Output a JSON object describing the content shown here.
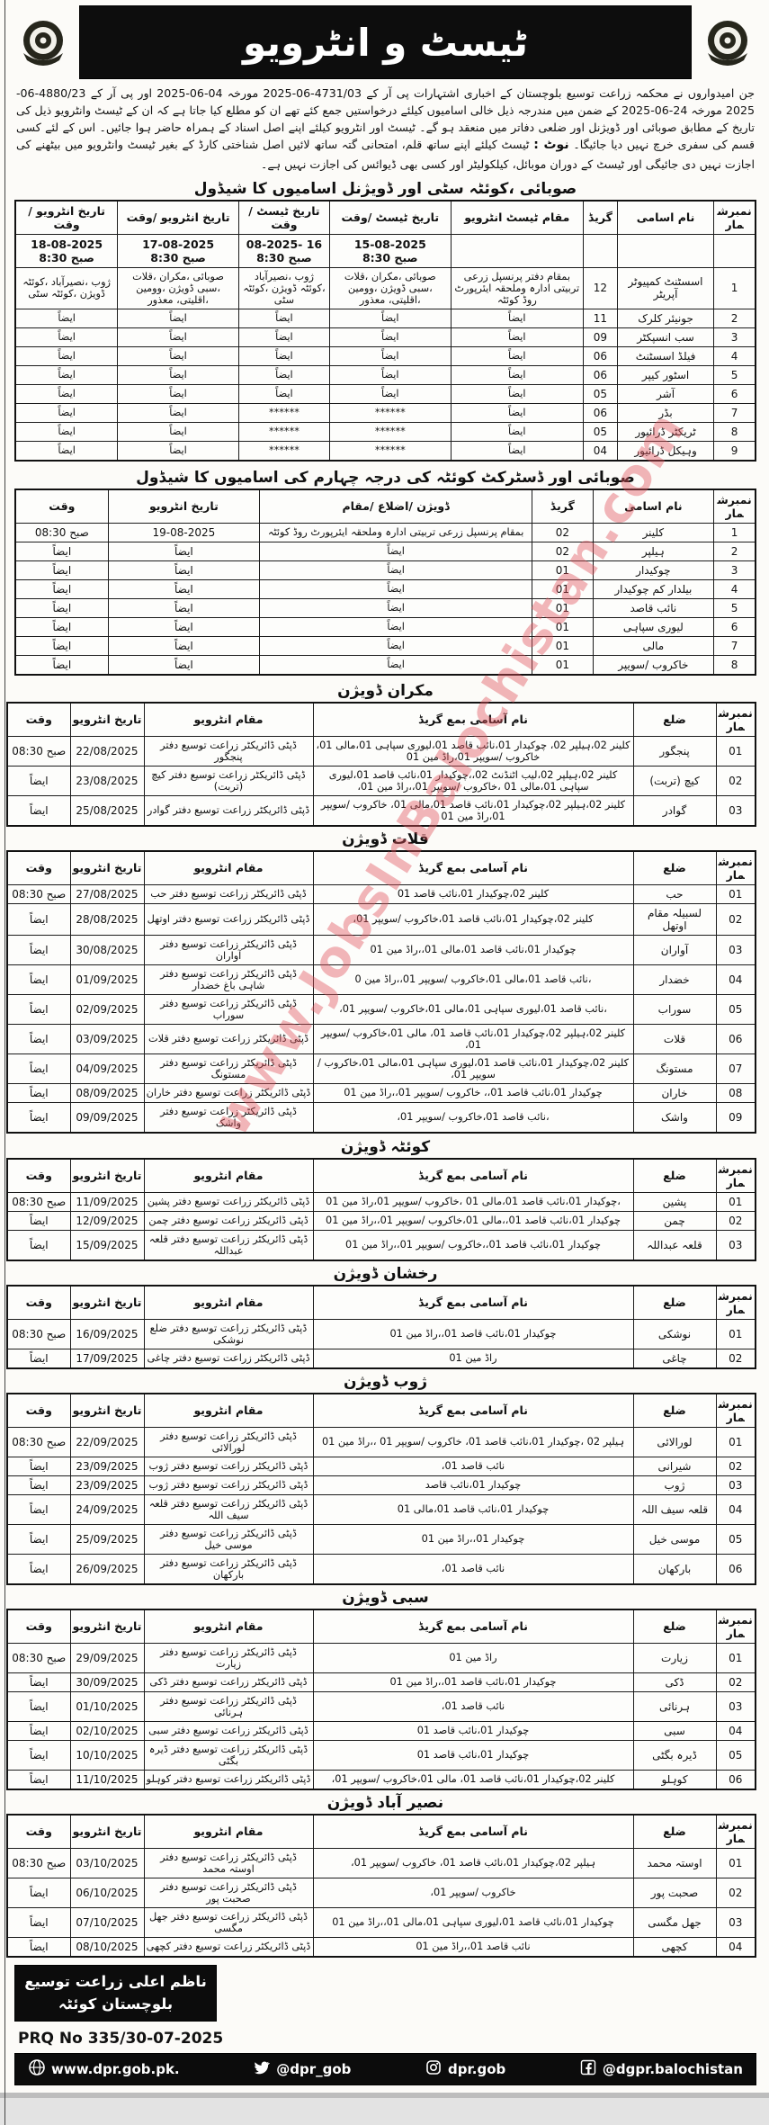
{
  "header": {
    "title": "ٹیسٹ و انٹرویو",
    "left_logo": "govt-crest",
    "right_logo": "govt-crest"
  },
  "watermark": "www.JobsInBalochistan.com",
  "intro": {
    "part1": "جن امیدواروں نے محکمہ زراعت توسیع بلوچستان کے اخباری اشتہارات پی آر کے 4731/03-06-2025 مورخہ 04-06-2025 اور پی آر کے 4880/23-06-2025 مورخہ 24-06-2025 کے ضمن میں مندرجہ ذیل خالی اسامیوں کیلئے درخواستیں جمع کئے تھے ان کو مطلع کیا جاتا ہے کہ ان کے ٹیسٹ وانٹرویو ذیل کی تاریخ کے مطابق صوبائی اور ڈویژنل اور ضلعی دفاتر میں منعقد ہو گے۔ ٹیسٹ اور انٹرویو کیلئے اپنے اصل اسناد کے ہمراہ حاضر ہوا جائیں۔ اس کے لئے کسی قسم کی سفری خرچ نہیں دیا جائیگا۔ ",
    "note_label": "نوٹ :",
    "part2": " ٹیسٹ کیلئے اپنے ساتھ قلم، امتحانی گتہ ساتھ لائیں اصل شناختی کارڈ کے بغیر ٹیسٹ وانٹرویو میں بیٹھنے کی اجازت نہیں دی جائیگی اور ٹیسٹ کے دوران موبائل، کیلکولیٹر اور کسی بھی ڈیوائس کی اجازت نہیں ہے۔"
  },
  "schedule1": {
    "title": "صوبائی ،کوئٹہ سٹی اور ڈویژنل اسامیوں کا شیڈول",
    "columns": [
      "نمبرشمار",
      "نام اسامی",
      "گریڈ",
      "مقام ٹیسٹ انٹرویو",
      "تاریخ ٹیسٹ /وقت",
      "تاریخ ٹیسٹ /وقت",
      "تاریخ انٹرویو /وقت",
      "تاریخ انٹرویو /وقت"
    ],
    "dates": [
      {
        "date": "15-08-2025",
        "time": "صبح 8:30"
      },
      {
        "date": "16 -08-2025",
        "time": "صبح 8:30"
      },
      {
        "date": "17-08-2025",
        "time": "صبح 8:30"
      },
      {
        "date": "18-08-2025",
        "time": "صبح 8:30"
      }
    ],
    "ditto": "ایضاً",
    "stars": "******",
    "rows": [
      {
        "no": "1",
        "name": "اسسٹنٹ کمپیوٹر آپریٹر",
        "grade": "12",
        "venue": "بمقام دفتر پرنسپل زرعی تربیتی ادارہ وملحقہ ایئرپورٹ روڈ کوئٹہ",
        "c1": "صوبائی ،مکران ،قلات ،سبی ڈویژن ،وومین ،اقلیتی، معذور",
        "c2": "ژوب ،نصیرآباد ،کوئٹہ ڈویژن ،کوئٹہ سٹی",
        "c3": "صوبائی ،مکران ،قلات ،سبی ڈویژن ،وومین ،اقلیتی، معذور",
        "c4": "ژوب ،نصیرآباد ،کوئٹہ ڈویژن ،کوئٹہ سٹی"
      },
      {
        "no": "2",
        "name": "جونیئر کلرک",
        "grade": "11",
        "venue": "ایضاً",
        "c1": "ایضاً",
        "c2": "ایضاً",
        "c3": "ایضاً",
        "c4": "ایضاً"
      },
      {
        "no": "3",
        "name": "سب انسپکٹر",
        "grade": "09",
        "venue": "ایضاً",
        "c1": "ایضاً",
        "c2": "ایضاً",
        "c3": "ایضاً",
        "c4": "ایضاً"
      },
      {
        "no": "4",
        "name": "فیلڈ اسسٹنٹ",
        "grade": "06",
        "venue": "ایضاً",
        "c1": "ایضاً",
        "c2": "ایضاً",
        "c3": "ایضاً",
        "c4": "ایضاً"
      },
      {
        "no": "5",
        "name": "اسٹور کیپر",
        "grade": "06",
        "venue": "ایضاً",
        "c1": "ایضاً",
        "c2": "ایضاً",
        "c3": "ایضاً",
        "c4": "ایضاً"
      },
      {
        "no": "6",
        "name": "آشر",
        "grade": "05",
        "venue": "ایضاً",
        "c1": "ایضاً",
        "c2": "ایضاً",
        "c3": "ایضاً",
        "c4": "ایضاً"
      },
      {
        "no": "7",
        "name": "بڈر",
        "grade": "06",
        "venue": "ایضاً",
        "c1": "******",
        "c2": "******",
        "c3": "ایضاً",
        "c4": "ایضاً"
      },
      {
        "no": "8",
        "name": "ٹریکٹر ڈرائیور",
        "grade": "05",
        "venue": "ایضاً",
        "c1": "******",
        "c2": "******",
        "c3": "ایضاً",
        "c4": "ایضاً"
      },
      {
        "no": "9",
        "name": "وہیکل ڈرائیور",
        "grade": "04",
        "venue": "ایضاً",
        "c1": "******",
        "c2": "******",
        "c3": "ایضاً",
        "c4": "ایضاً"
      }
    ]
  },
  "schedule2": {
    "title": "صوبائی اور ڈسٹرکٹ کوئٹہ کی درجہ چہارم کی اسامیوں کا شیڈول",
    "columns": [
      "نمبرشمار",
      "نام اسامی",
      "گریڈ",
      "ڈویژن /اضلاع /مقام",
      "تاریخ انٹرویو",
      "وقت"
    ],
    "rows": [
      {
        "no": "1",
        "name": "کلینر",
        "grade": "02",
        "place": "بمقام پرنسپل زرعی تربیتی ادارہ وملحقہ ایئرپورٹ روڈ کوئٹہ",
        "date": "19-08-2025",
        "time": "صبح 08:30"
      },
      {
        "no": "2",
        "name": "ہیلپر",
        "grade": "02",
        "place": "ایضاً",
        "date": "ایضاً",
        "time": "ایضاً"
      },
      {
        "no": "3",
        "name": "چوکیدار",
        "grade": "01",
        "place": "ایضاً",
        "date": "ایضاً",
        "time": "ایضاً"
      },
      {
        "no": "4",
        "name": "بیلدار کم چوکیدار",
        "grade": "01",
        "place": "ایضاً",
        "date": "ایضاً",
        "time": "ایضاً"
      },
      {
        "no": "5",
        "name": "نائب قاصد",
        "grade": "01",
        "place": "ایضاً",
        "date": "ایضاً",
        "time": "ایضاً"
      },
      {
        "no": "6",
        "name": "لیوری سپاہی",
        "grade": "01",
        "place": "ایضاً",
        "date": "ایضاً",
        "time": "ایضاً"
      },
      {
        "no": "7",
        "name": "مالی",
        "grade": "01",
        "place": "ایضاً",
        "date": "ایضاً",
        "time": "ایضاً"
      },
      {
        "no": "8",
        "name": "خاکروب /سویپر",
        "grade": "01",
        "place": "ایضاً",
        "date": "ایضاً",
        "time": "ایضاً"
      }
    ]
  },
  "division_columns": [
    "نمبرشمار",
    "ضلع",
    "نام آسامی بمع گریڈ",
    "مقام انٹرویو",
    "تاریخ انٹرویو",
    "وقت"
  ],
  "divisions": [
    {
      "title": "مکران ڈویژن",
      "rows": [
        {
          "no": "01",
          "district": "پنجگور",
          "posts": "کلینر 02،ہیلپر 02، چوکیدار 01،نائب قاصد 01،لیوری سپاہی 01،مالی 01، خاکروب /سویپر 01،راڈ مین 01",
          "venue": "ڈپٹی ڈائریکٹر زراعت توسیع دفتر پنجگور",
          "date": "22/08/2025",
          "time": "صبح 08:30"
        },
        {
          "no": "02",
          "district": "کیچ (تربت)",
          "posts": "کلینر 02،ہیلپر 02،لیب اٹنڈنٹ 02،،چوکیدار 01،نائب قاصد 01،لیوری سپاہی 01،مالی 01 ،خاکروب /سویپر 01،،راڈ مین 01،",
          "venue": "ڈپٹی ڈائریکٹر زراعت توسیع دفتر کیچ (تربت)",
          "date": "23/08/2025",
          "time": "ایضاً"
        },
        {
          "no": "03",
          "district": "گوادر",
          "posts": "کلینر 02،ہیلپر 02،چوکیدار 01،نائب قاصد 01،مالی 01، خاکروب /سویپر 01،راڈ مین 01",
          "venue": "ڈپٹی ڈائریکٹر زراعت توسیع دفتر گوادر",
          "date": "25/08/2025",
          "time": "ایضاً"
        }
      ]
    },
    {
      "title": "قلات ڈویژن",
      "rows": [
        {
          "no": "01",
          "district": "حب",
          "posts": "کلینر 02،چوکیدار 01،نائب قاصد 01",
          "venue": "ڈپٹی ڈائریکٹر زراعت توسیع دفتر حب",
          "date": "27/08/2025",
          "time": "صبح 08:30"
        },
        {
          "no": "02",
          "district": "لسبیلہ مقام اوتھل",
          "posts": "کلینر 02،چوکیدار 01،نائب قاصد 01،خاکروب /سویپر 01،",
          "venue": "ڈپٹی ڈائریکٹر زراعت توسیع دفتر اوتھل",
          "date": "28/08/2025",
          "time": "ایضاً"
        },
        {
          "no": "03",
          "district": "آواران",
          "posts": "چوکیدار 01،نائب قاصد 01،مالی 01،،راڈ مین 01",
          "venue": "ڈپٹی ڈائریکٹر زراعت توسیع دفتر آواران",
          "date": "30/08/2025",
          "time": "ایضاً"
        },
        {
          "no": "04",
          "district": "خضدار",
          "posts": "،نائب قاصد 01،مالی 01،خاکروب /سویپر 01،،راڈ مین 0",
          "venue": "ڈپٹی ڈائریکٹر زراعت توسیع دفتر شاہی باغ خضدار",
          "date": "01/09/2025",
          "time": "ایضاً"
        },
        {
          "no": "05",
          "district": "سوراب",
          "posts": "،نائب قاصد 01،لیوری سپاہی 01،مالی 01،خاکروب /سویپر 01،",
          "venue": "ڈپٹی ڈائریکٹر زراعت توسیع دفتر سوراب",
          "date": "02/09/2025",
          "time": "ایضاً"
        },
        {
          "no": "06",
          "district": "قلات",
          "posts": "کلینر 02،ہیلپر 02،چوکیدار 01،نائب قاصد 01، مالی 01،خاکروب /سویپر 01،",
          "venue": "ڈپٹی ڈائریکٹر زراعت توسیع دفتر قلات",
          "date": "03/09/2025",
          "time": "ایضاً"
        },
        {
          "no": "07",
          "district": "مستونگ",
          "posts": "کلینر 02،چوکیدار 01،نائب قاصد 01،لیوری سپاہی 01،مالی 01،خاکروب /سویپر 01،",
          "venue": "ڈپٹی ڈائریکٹر زراعت توسیع دفتر مستونگ",
          "date": "04/09/2025",
          "time": "ایضاً"
        },
        {
          "no": "08",
          "district": "خاران",
          "posts": "چوکیدار 01،نائب قاصد 01،، خاکروب /سویپر 01،،راڈ مین 01",
          "venue": "ڈپٹی ڈائریکٹر زراعت توسیع دفتر خاران",
          "date": "08/09/2025",
          "time": "ایضاً"
        },
        {
          "no": "09",
          "district": "واشک",
          "posts": "،نائب قاصد 01،خاکروب /سویپر 01،",
          "venue": "ڈپٹی ڈائریکٹر زراعت توسیع دفتر واشک",
          "date": "09/09/2025",
          "time": "ایضاً"
        }
      ]
    },
    {
      "title": "کوئٹہ ڈویژن",
      "rows": [
        {
          "no": "01",
          "district": "پشین",
          "posts": "،چوکیدار 01،نائب قاصد 01،مالی 01 ،خاکروب /سویپر 01،راڈ مین 01",
          "venue": "ڈپٹی ڈائریکٹر زراعت توسیع دفتر پشین",
          "date": "11/09/2025",
          "time": "صبح 08:30"
        },
        {
          "no": "02",
          "district": "چمن",
          "posts": "چوکیدار 01،نائب قاصد 01،،مالی 01،خاکروب /سویپر 01،،راڈ مین 01",
          "venue": "ڈپٹی ڈائریکٹر زراعت توسیع دفتر چمن",
          "date": "12/09/2025",
          "time": "ایضاً"
        },
        {
          "no": "03",
          "district": "قلعہ عبداللہ",
          "posts": "چوکیدار 01،نائب قاصد 01،،خاکروب /سویپر 01،،راڈ مین 01",
          "venue": "ڈپٹی ڈائریکٹر زراعت توسیع دفتر قلعہ عبداللہ",
          "date": "15/09/2025",
          "time": "ایضاً"
        }
      ]
    },
    {
      "title": "رخشان ڈویژن",
      "rows": [
        {
          "no": "01",
          "district": "نوشکی",
          "posts": "چوکیدار 01،نائب قاصد 01،،راڈ مین 01",
          "venue": "ڈپٹی ڈائریکٹر زراعت توسیع دفتر ضلع نوشکی",
          "date": "16/09/2025",
          "time": "صبح 08:30"
        },
        {
          "no": "02",
          "district": "چاغی",
          "posts": "راڈ مین 01",
          "venue": "ڈپٹی ڈائریکٹر زراعت توسیع دفتر چاغی",
          "date": "17/09/2025",
          "time": "ایضاً"
        }
      ]
    },
    {
      "title": "ژوب ڈویژن",
      "rows": [
        {
          "no": "01",
          "district": "لورالائی",
          "posts": "ہیلپر 02 ،چوکیدار 01،نائب قاصد 01، خاکروب /سویپر 01 ،،راڈ مین 01",
          "venue": "ڈپٹی ڈائریکٹر زراعت توسیع دفتر لورالائی",
          "date": "22/09/2025",
          "time": "صبح 08:30"
        },
        {
          "no": "02",
          "district": "شیرانی",
          "posts": "نائب قاصد 01،",
          "venue": "ڈپٹی ڈائریکٹر زراعت توسیع دفتر ژوب",
          "date": "23/09/2025",
          "time": "ایضاً"
        },
        {
          "no": "03",
          "district": "ژوب",
          "posts": "چوکیدار 01،نائب قاصد",
          "venue": "ڈپٹی ڈائریکٹر زراعت توسیع دفتر ژوب",
          "date": "23/09/2025",
          "time": "ایضاً"
        },
        {
          "no": "04",
          "district": "قلعہ سیف اللہ",
          "posts": "چوکیدار 01،نائب قاصد 01،مالی 01",
          "venue": "ڈپٹی ڈائریکٹر زراعت توسیع دفتر قلعہ سیف اللہ",
          "date": "24/09/2025",
          "time": "ایضاً"
        },
        {
          "no": "05",
          "district": "موسی خیل",
          "posts": "چوکیدار 01،،راڈ مین 01",
          "venue": "ڈپٹی ڈائریکٹر زراعت توسیع دفتر موسی خیل",
          "date": "25/09/2025",
          "time": "ایضاً"
        },
        {
          "no": "06",
          "district": "بارکھان",
          "posts": "نائب قاصد 01،",
          "venue": "ڈپٹی ڈائریکٹر زراعت توسیع دفتر بارکھان",
          "date": "26/09/2025",
          "time": "ایضاً"
        }
      ]
    },
    {
      "title": "سبی ڈویژن",
      "rows": [
        {
          "no": "01",
          "district": "زیارت",
          "posts": "راڈ مین 01",
          "venue": "ڈپٹی ڈائریکٹر زراعت توسیع دفتر زیارت",
          "date": "29/09/2025",
          "time": "صبح 08:30"
        },
        {
          "no": "02",
          "district": "ڈکی",
          "posts": "چوکیدار 01،نائب قاصد 01،،راڈ مین 01",
          "venue": "ڈپٹی ڈائریکٹر زراعت توسیع دفتر ڈکی",
          "date": "30/09/2025",
          "time": "ایضاً"
        },
        {
          "no": "03",
          "district": "ہرنائی",
          "posts": "نائب قاصد 01،",
          "venue": "ڈپٹی ڈائریکٹر زراعت توسیع دفتر ہرنائی",
          "date": "01/10/2025",
          "time": "ایضاً"
        },
        {
          "no": "04",
          "district": "سبی",
          "posts": "چوکیدار 01،نائب قاصد 01",
          "venue": "ڈپٹی ڈائریکٹر زراعت توسیع دفتر سبی",
          "date": "02/10/2025",
          "time": "ایضاً"
        },
        {
          "no": "05",
          "district": "ڈیرہ بگٹی",
          "posts": "چوکیدار 01،نائب قاصد 01",
          "venue": "ڈپٹی ڈائریکٹر زراعت توسیع دفتر ڈیرہ بگٹی",
          "date": "10/10/2025",
          "time": "ایضاً"
        },
        {
          "no": "06",
          "district": "کوہلو",
          "posts": "کلینر 02،چوکیدار 01،نائب قاصد 01، مالی 01،خاکروب /سویپر 01،",
          "venue": "ڈپٹی ڈائریکٹر زراعت توسیع دفتر کوہلو",
          "date": "11/10/2025",
          "time": "ایضاً"
        }
      ]
    },
    {
      "title": "نصیر آباد ڈویژن",
      "rows": [
        {
          "no": "01",
          "district": "اوستہ محمد",
          "posts": "ہیلپر 02،چوکیدار 01،نائب قاصد 01، خاکروب /سویپر 01،",
          "venue": "ڈپٹی ڈائریکٹر زراعت توسیع دفتر اوستہ محمد",
          "date": "03/10/2025",
          "time": "صبح 08:30"
        },
        {
          "no": "02",
          "district": "صحبت پور",
          "posts": "خاکروب /سویپر 01،",
          "venue": "ڈپٹی ڈائریکٹر زراعت توسیع دفتر صحبت پور",
          "date": "06/10/2025",
          "time": "ایضاً"
        },
        {
          "no": "03",
          "district": "جھل مگسی",
          "posts": "چوکیدار 01،نائب قاصد 01،لیوری سپاہی 01،مالی 01،،راڈ مین 01",
          "venue": "ڈپٹی ڈائریکٹر زراعت توسیع دفتر جھل مگسی",
          "date": "07/10/2025",
          "time": "ایضاً"
        },
        {
          "no": "04",
          "district": "کچھی",
          "posts": "نائب قاصد 01،،راڈ مین 01",
          "venue": "ڈپٹی ڈائریکٹر زراعت توسیع دفتر کچھی",
          "date": "08/10/2025",
          "time": "ایضاً"
        }
      ]
    }
  ],
  "footer": {
    "issuer_line1": "ناظم اعلی زراعت توسیع",
    "issuer_line2": "بلوچستان کوئٹہ",
    "prq": "PRQ No 335/30-07-2025",
    "social": [
      {
        "icon": "globe-icon",
        "label": "www.dpr.gob.pk."
      },
      {
        "icon": "twitter-icon",
        "label": "@dpr_gob"
      },
      {
        "icon": "instagram-icon",
        "label": "dpr.gob"
      },
      {
        "icon": "facebook-icon",
        "label": "@dgpr.balochistan"
      }
    ]
  }
}
